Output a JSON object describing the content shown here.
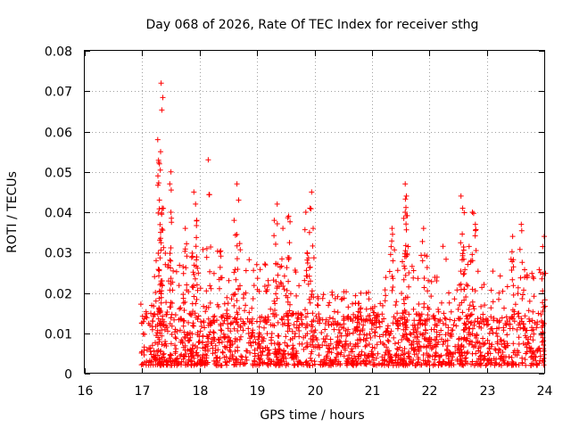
{
  "chart_data": {
    "type": "scatter",
    "title": "Day 068 of 2026, Rate Of TEC Index for receiver sthg",
    "xlabel": "GPS time / hours",
    "ylabel": "ROTI / TECUs",
    "xlim": [
      16,
      24
    ],
    "ylim": [
      0,
      0.08
    ],
    "x_ticks": [
      "16",
      "17",
      "18",
      "19",
      "20",
      "21",
      "22",
      "23",
      "24"
    ],
    "y_ticks": [
      "0",
      "0.01",
      "0.02",
      "0.03",
      "0.04",
      "0.05",
      "0.06",
      "0.07",
      "0.08"
    ],
    "grid": true,
    "marker": "+",
    "series": [
      {
        "name": "ROTI",
        "color": "#ff0000",
        "x_range": [
          16.97,
          24.0
        ],
        "baseline_range": [
          0.002,
          0.015
        ],
        "peaks": [
          {
            "x": 17.33,
            "y": 0.072
          },
          {
            "x": 17.27,
            "y": 0.058
          },
          {
            "x": 17.32,
            "y": 0.055
          },
          {
            "x": 17.3,
            "y": 0.052
          },
          {
            "x": 17.5,
            "y": 0.05
          },
          {
            "x": 17.48,
            "y": 0.047
          },
          {
            "x": 17.3,
            "y": 0.043
          },
          {
            "x": 17.35,
            "y": 0.041
          },
          {
            "x": 17.5,
            "y": 0.04
          },
          {
            "x": 17.32,
            "y": 0.035
          },
          {
            "x": 17.9,
            "y": 0.045
          },
          {
            "x": 17.93,
            "y": 0.042
          },
          {
            "x": 17.95,
            "y": 0.038
          },
          {
            "x": 17.75,
            "y": 0.036
          },
          {
            "x": 18.15,
            "y": 0.053
          },
          {
            "x": 18.65,
            "y": 0.047
          },
          {
            "x": 18.68,
            "y": 0.043
          },
          {
            "x": 18.6,
            "y": 0.038
          },
          {
            "x": 19.35,
            "y": 0.042
          },
          {
            "x": 19.3,
            "y": 0.038
          },
          {
            "x": 19.55,
            "y": 0.039
          },
          {
            "x": 19.45,
            "y": 0.036
          },
          {
            "x": 19.95,
            "y": 0.045
          },
          {
            "x": 19.92,
            "y": 0.041
          },
          {
            "x": 19.85,
            "y": 0.04
          },
          {
            "x": 21.58,
            "y": 0.047
          },
          {
            "x": 21.6,
            "y": 0.044
          },
          {
            "x": 21.58,
            "y": 0.04
          },
          {
            "x": 21.35,
            "y": 0.036
          },
          {
            "x": 21.9,
            "y": 0.036
          },
          {
            "x": 22.55,
            "y": 0.044
          },
          {
            "x": 22.58,
            "y": 0.041
          },
          {
            "x": 22.75,
            "y": 0.04
          },
          {
            "x": 22.8,
            "y": 0.037
          },
          {
            "x": 23.6,
            "y": 0.037
          },
          {
            "x": 23.45,
            "y": 0.034
          },
          {
            "x": 24.0,
            "y": 0.034
          }
        ]
      }
    ]
  }
}
